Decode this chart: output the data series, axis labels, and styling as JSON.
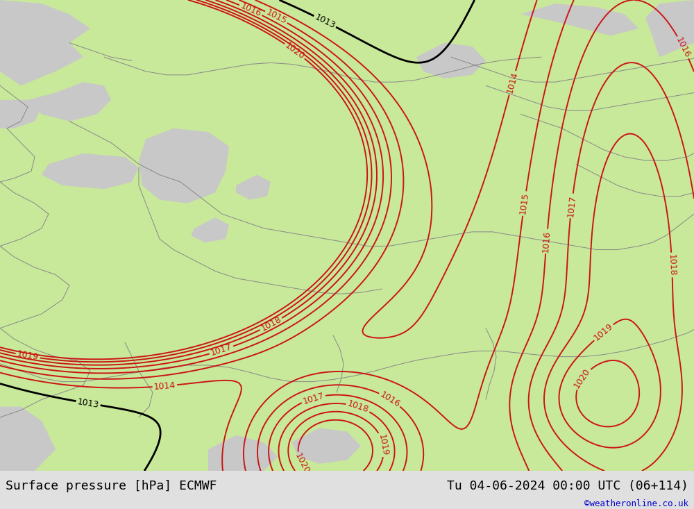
{
  "title_left": "Surface pressure [hPa] ECMWF",
  "title_right": "Tu 04-06-2024 00:00 UTC (06+114)",
  "copyright": "©weatheronline.co.uk",
  "bg_color": "#e0e0e0",
  "land_color": "#c8e89a",
  "sea_color": "#c8c8c8",
  "isobar_color_blue": "#1414cc",
  "isobar_color_black": "#000000",
  "isobar_color_red": "#cc1414",
  "footer_bg": "#ffffff",
  "footer_color": "#000000",
  "copyright_color": "#0000cc",
  "footer_fontsize": 13,
  "copyright_fontsize": 9,
  "label_fontsize": 9
}
